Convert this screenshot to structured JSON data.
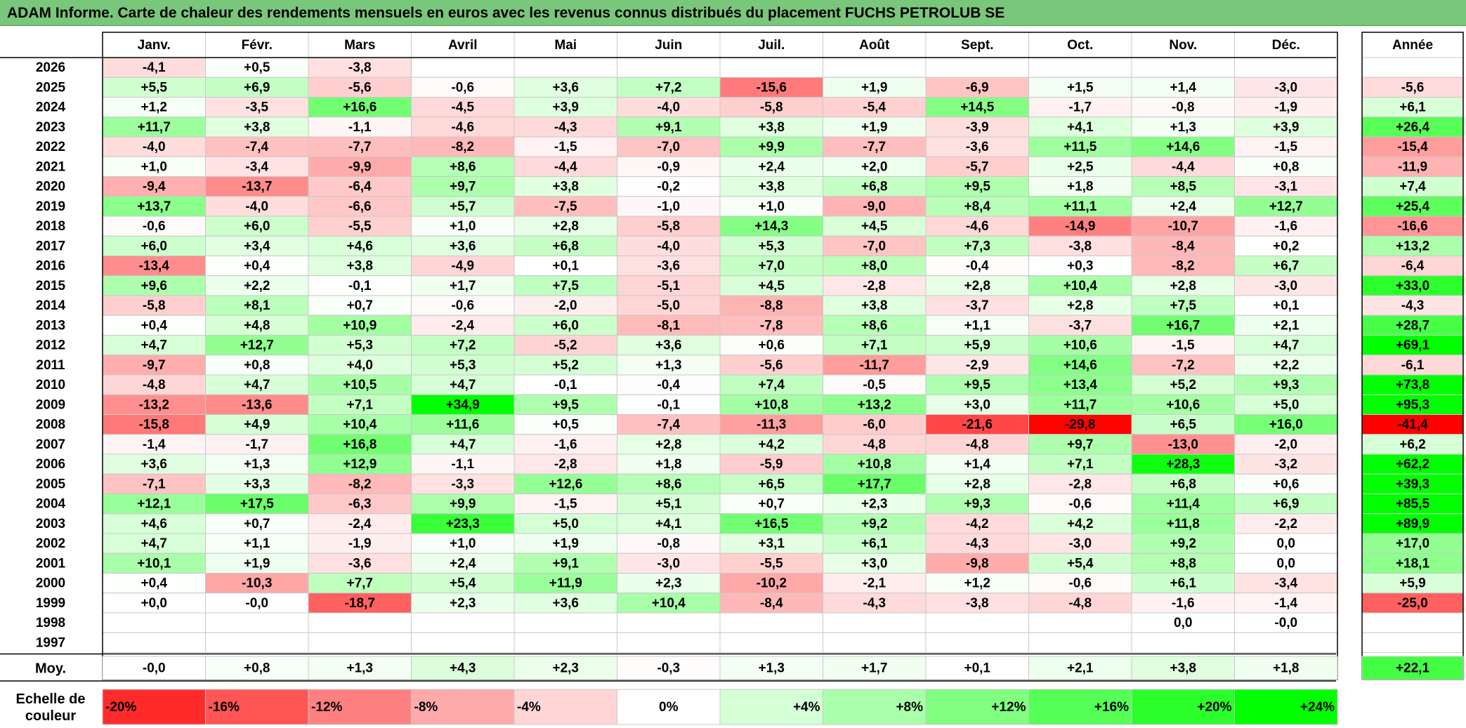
{
  "title": "ADAM Informe. Carte de chaleur des rendements mensuels en euros avec les revenus connus distribués du placement FUCHS PETROLUB SE",
  "year_header": "Année",
  "average_label": "Moy.",
  "scale_label": [
    "Echelle de",
    "couleur"
  ],
  "colors": {
    "title_bg": "#79c77a",
    "negative_max": "#ff0000",
    "positive_max": "#00ff00",
    "neutral": "#ffffff"
  },
  "chart_data": {
    "type": "heatmap",
    "title": "ADAM Informe. Carte de chaleur des rendements mensuels en euros avec les revenus connus distribués du placement FUCHS PETROLUB SE",
    "columns": [
      "Janv.",
      "Févr.",
      "Mars",
      "Avril",
      "Mai",
      "Juin",
      "Juil.",
      "Août",
      "Sept.",
      "Oct.",
      "Nov.",
      "Déc."
    ],
    "rows": [
      {
        "year": "2026",
        "values": [
          "-4,1",
          "+0,5",
          "-3,8",
          "",
          "",
          "",
          "",
          "",
          "",
          "",
          "",
          ""
        ],
        "annual": ""
      },
      {
        "year": "2025",
        "values": [
          "+5,5",
          "+6,9",
          "-5,6",
          "-0,6",
          "+3,6",
          "+7,2",
          "-15,6",
          "+1,9",
          "-6,9",
          "+1,5",
          "+1,4",
          "-3,0"
        ],
        "annual": "-5,6"
      },
      {
        "year": "2024",
        "values": [
          "+1,2",
          "-3,5",
          "+16,6",
          "-4,5",
          "+3,9",
          "-4,0",
          "-5,8",
          "-5,4",
          "+14,5",
          "-1,7",
          "-0,8",
          "-1,9"
        ],
        "annual": "+6,1"
      },
      {
        "year": "2023",
        "values": [
          "+11,7",
          "+3,8",
          "-1,1",
          "-4,6",
          "-4,3",
          "+9,1",
          "+3,8",
          "+1,9",
          "-3,9",
          "+4,1",
          "+1,3",
          "+3,9"
        ],
        "annual": "+26,4"
      },
      {
        "year": "2022",
        "values": [
          "-4,0",
          "-7,4",
          "-7,7",
          "-8,2",
          "-1,5",
          "-7,0",
          "+9,9",
          "-7,7",
          "-3,6",
          "+11,5",
          "+14,6",
          "-1,5"
        ],
        "annual": "-15,4"
      },
      {
        "year": "2021",
        "values": [
          "+1,0",
          "-3,4",
          "-9,9",
          "+8,6",
          "-4,4",
          "-0,9",
          "+2,4",
          "+2,0",
          "-5,7",
          "+2,5",
          "-4,4",
          "+0,8"
        ],
        "annual": "-11,9"
      },
      {
        "year": "2020",
        "values": [
          "-9,4",
          "-13,7",
          "-6,4",
          "+9,7",
          "+3,8",
          "-0,2",
          "+3,8",
          "+6,8",
          "+9,5",
          "+1,8",
          "+8,5",
          "-3,1"
        ],
        "annual": "+7,4"
      },
      {
        "year": "2019",
        "values": [
          "+13,7",
          "-4,0",
          "-6,6",
          "+5,7",
          "-7,5",
          "-1,0",
          "+1,0",
          "-9,0",
          "+8,4",
          "+11,1",
          "+2,4",
          "+12,7"
        ],
        "annual": "+25,4"
      },
      {
        "year": "2018",
        "values": [
          "-0,6",
          "+6,0",
          "-5,5",
          "+1,0",
          "+2,8",
          "-5,8",
          "+14,3",
          "+4,5",
          "-4,6",
          "-14,9",
          "-10,7",
          "-1,6"
        ],
        "annual": "-16,6"
      },
      {
        "year": "2017",
        "values": [
          "+6,0",
          "+3,4",
          "+4,6",
          "+3,6",
          "+6,8",
          "-4,0",
          "+5,3",
          "-7,0",
          "+7,3",
          "-3,8",
          "-8,4",
          "+0,2"
        ],
        "annual": "+13,2"
      },
      {
        "year": "2016",
        "values": [
          "-13,4",
          "+0,4",
          "+3,8",
          "-4,9",
          "+0,1",
          "-3,6",
          "+7,0",
          "+8,0",
          "-0,4",
          "+0,3",
          "-8,2",
          "+6,7"
        ],
        "annual": "-6,4"
      },
      {
        "year": "2015",
        "values": [
          "+9,6",
          "+2,2",
          "-0,1",
          "+1,7",
          "+7,5",
          "-5,1",
          "+4,5",
          "-2,8",
          "+2,8",
          "+10,4",
          "+2,8",
          "-3,0"
        ],
        "annual": "+33,0"
      },
      {
        "year": "2014",
        "values": [
          "-5,8",
          "+8,1",
          "+0,7",
          "-0,6",
          "-2,0",
          "-5,0",
          "-8,8",
          "+3,8",
          "-3,7",
          "+2,8",
          "+7,5",
          "+0,1"
        ],
        "annual": "-4,3"
      },
      {
        "year": "2013",
        "values": [
          "+0,4",
          "+4,8",
          "+10,9",
          "-2,4",
          "+6,0",
          "-8,1",
          "-7,8",
          "+8,6",
          "+1,1",
          "-3,7",
          "+16,7",
          "+2,1"
        ],
        "annual": "+28,7"
      },
      {
        "year": "2012",
        "values": [
          "+4,7",
          "+12,7",
          "+5,3",
          "+7,2",
          "-5,2",
          "+3,6",
          "+0,6",
          "+7,1",
          "+5,9",
          "+10,6",
          "-1,5",
          "+4,7"
        ],
        "annual": "+69,1"
      },
      {
        "year": "2011",
        "values": [
          "-9,7",
          "+0,8",
          "+4,0",
          "+5,3",
          "+5,2",
          "+1,3",
          "-5,6",
          "-11,7",
          "-2,9",
          "+14,6",
          "-7,2",
          "+2,2"
        ],
        "annual": "-6,1"
      },
      {
        "year": "2010",
        "values": [
          "-4,8",
          "+4,7",
          "+10,5",
          "+4,7",
          "-0,1",
          "-0,4",
          "+7,4",
          "-0,5",
          "+9,5",
          "+13,4",
          "+5,2",
          "+9,3"
        ],
        "annual": "+73,8"
      },
      {
        "year": "2009",
        "values": [
          "-13,2",
          "-13,6",
          "+7,1",
          "+34,9",
          "+9,5",
          "-0,1",
          "+10,8",
          "+13,2",
          "+3,0",
          "+11,7",
          "+10,6",
          "+5,0"
        ],
        "annual": "+95,3"
      },
      {
        "year": "2008",
        "values": [
          "-15,8",
          "+4,9",
          "+10,4",
          "+11,6",
          "+0,5",
          "-7,4",
          "-11,3",
          "-6,0",
          "-21,6",
          "-29,8",
          "+6,5",
          "+16,0"
        ],
        "annual": "-41,4"
      },
      {
        "year": "2007",
        "values": [
          "-1,4",
          "-1,7",
          "+16,8",
          "+4,7",
          "-1,6",
          "+2,8",
          "+4,2",
          "-4,8",
          "-4,8",
          "+9,7",
          "-13,0",
          "-2,0"
        ],
        "annual": "+6,2"
      },
      {
        "year": "2006",
        "values": [
          "+3,6",
          "+1,3",
          "+12,9",
          "-1,1",
          "-2,8",
          "+1,8",
          "-5,9",
          "+10,8",
          "+1,4",
          "+7,1",
          "+28,3",
          "-3,2"
        ],
        "annual": "+62,2"
      },
      {
        "year": "2005",
        "values": [
          "-7,1",
          "+3,3",
          "-8,2",
          "-3,3",
          "+12,6",
          "+8,6",
          "+6,5",
          "+17,7",
          "+2,8",
          "-2,8",
          "+6,8",
          "+0,6"
        ],
        "annual": "+39,3"
      },
      {
        "year": "2004",
        "values": [
          "+12,1",
          "+17,5",
          "-6,3",
          "+9,9",
          "-1,5",
          "+5,1",
          "+0,7",
          "+2,3",
          "+9,3",
          "-0,6",
          "+11,4",
          "+6,9"
        ],
        "annual": "+85,5"
      },
      {
        "year": "2003",
        "values": [
          "+4,6",
          "+0,7",
          "-2,4",
          "+23,3",
          "+5,0",
          "+4,1",
          "+16,5",
          "+9,2",
          "-4,2",
          "+4,2",
          "+11,8",
          "-2,2"
        ],
        "annual": "+89,9"
      },
      {
        "year": "2002",
        "values": [
          "+4,7",
          "+1,1",
          "-1,9",
          "+1,0",
          "+1,9",
          "-0,8",
          "+3,1",
          "+6,1",
          "-4,3",
          "-3,0",
          "+9,2",
          "0,0"
        ],
        "annual": "+17,0"
      },
      {
        "year": "2001",
        "values": [
          "+10,1",
          "+1,9",
          "-3,6",
          "+2,4",
          "+9,1",
          "-3,0",
          "-5,5",
          "+3,0",
          "-9,8",
          "+5,4",
          "+8,8",
          "0,0"
        ],
        "annual": "+18,1"
      },
      {
        "year": "2000",
        "values": [
          "+0,4",
          "-10,3",
          "+7,7",
          "+5,4",
          "+11,9",
          "+2,3",
          "-10,2",
          "-2,1",
          "+1,2",
          "-0,6",
          "+6,1",
          "-3,4"
        ],
        "annual": "+5,9"
      },
      {
        "year": "1999",
        "values": [
          "+0,0",
          "-0,0",
          "-18,7",
          "+2,3",
          "+3,6",
          "+10,4",
          "-8,4",
          "-4,3",
          "-3,8",
          "-4,8",
          "-1,6",
          "-1,4"
        ],
        "annual": "-25,0"
      },
      {
        "year": "1998",
        "values": [
          "",
          "",
          "",
          "",
          "",
          "",
          "",
          "",
          "",
          "",
          "0,0",
          "-0,0"
        ],
        "annual": ""
      },
      {
        "year": "1997",
        "values": [
          "",
          "",
          "",
          "",
          "",
          "",
          "",
          "",
          "",
          "",
          "",
          ""
        ],
        "annual": ""
      }
    ],
    "averages": [
      "-0,0",
      "+0,8",
      "+1,3",
      "+4,3",
      "+2,3",
      "-0,3",
      "+1,3",
      "+1,7",
      "+0,1",
      "+2,1",
      "+3,8",
      "+1,8"
    ],
    "average_annual": "+22,1",
    "scale": [
      {
        "label": "-20%",
        "value": -20
      },
      {
        "label": "-16%",
        "value": -16
      },
      {
        "label": "-12%",
        "value": -12
      },
      {
        "label": "-8%",
        "value": -8
      },
      {
        "label": "-4%",
        "value": -4
      },
      {
        "label": "0%",
        "value": 0
      },
      {
        "label": "+4%",
        "value": 4
      },
      {
        "label": "+8%",
        "value": 8
      },
      {
        "label": "+12%",
        "value": 12
      },
      {
        "label": "+16%",
        "value": 16
      },
      {
        "label": "+20%",
        "value": 20
      },
      {
        "label": "+24%",
        "value": 24
      }
    ]
  }
}
